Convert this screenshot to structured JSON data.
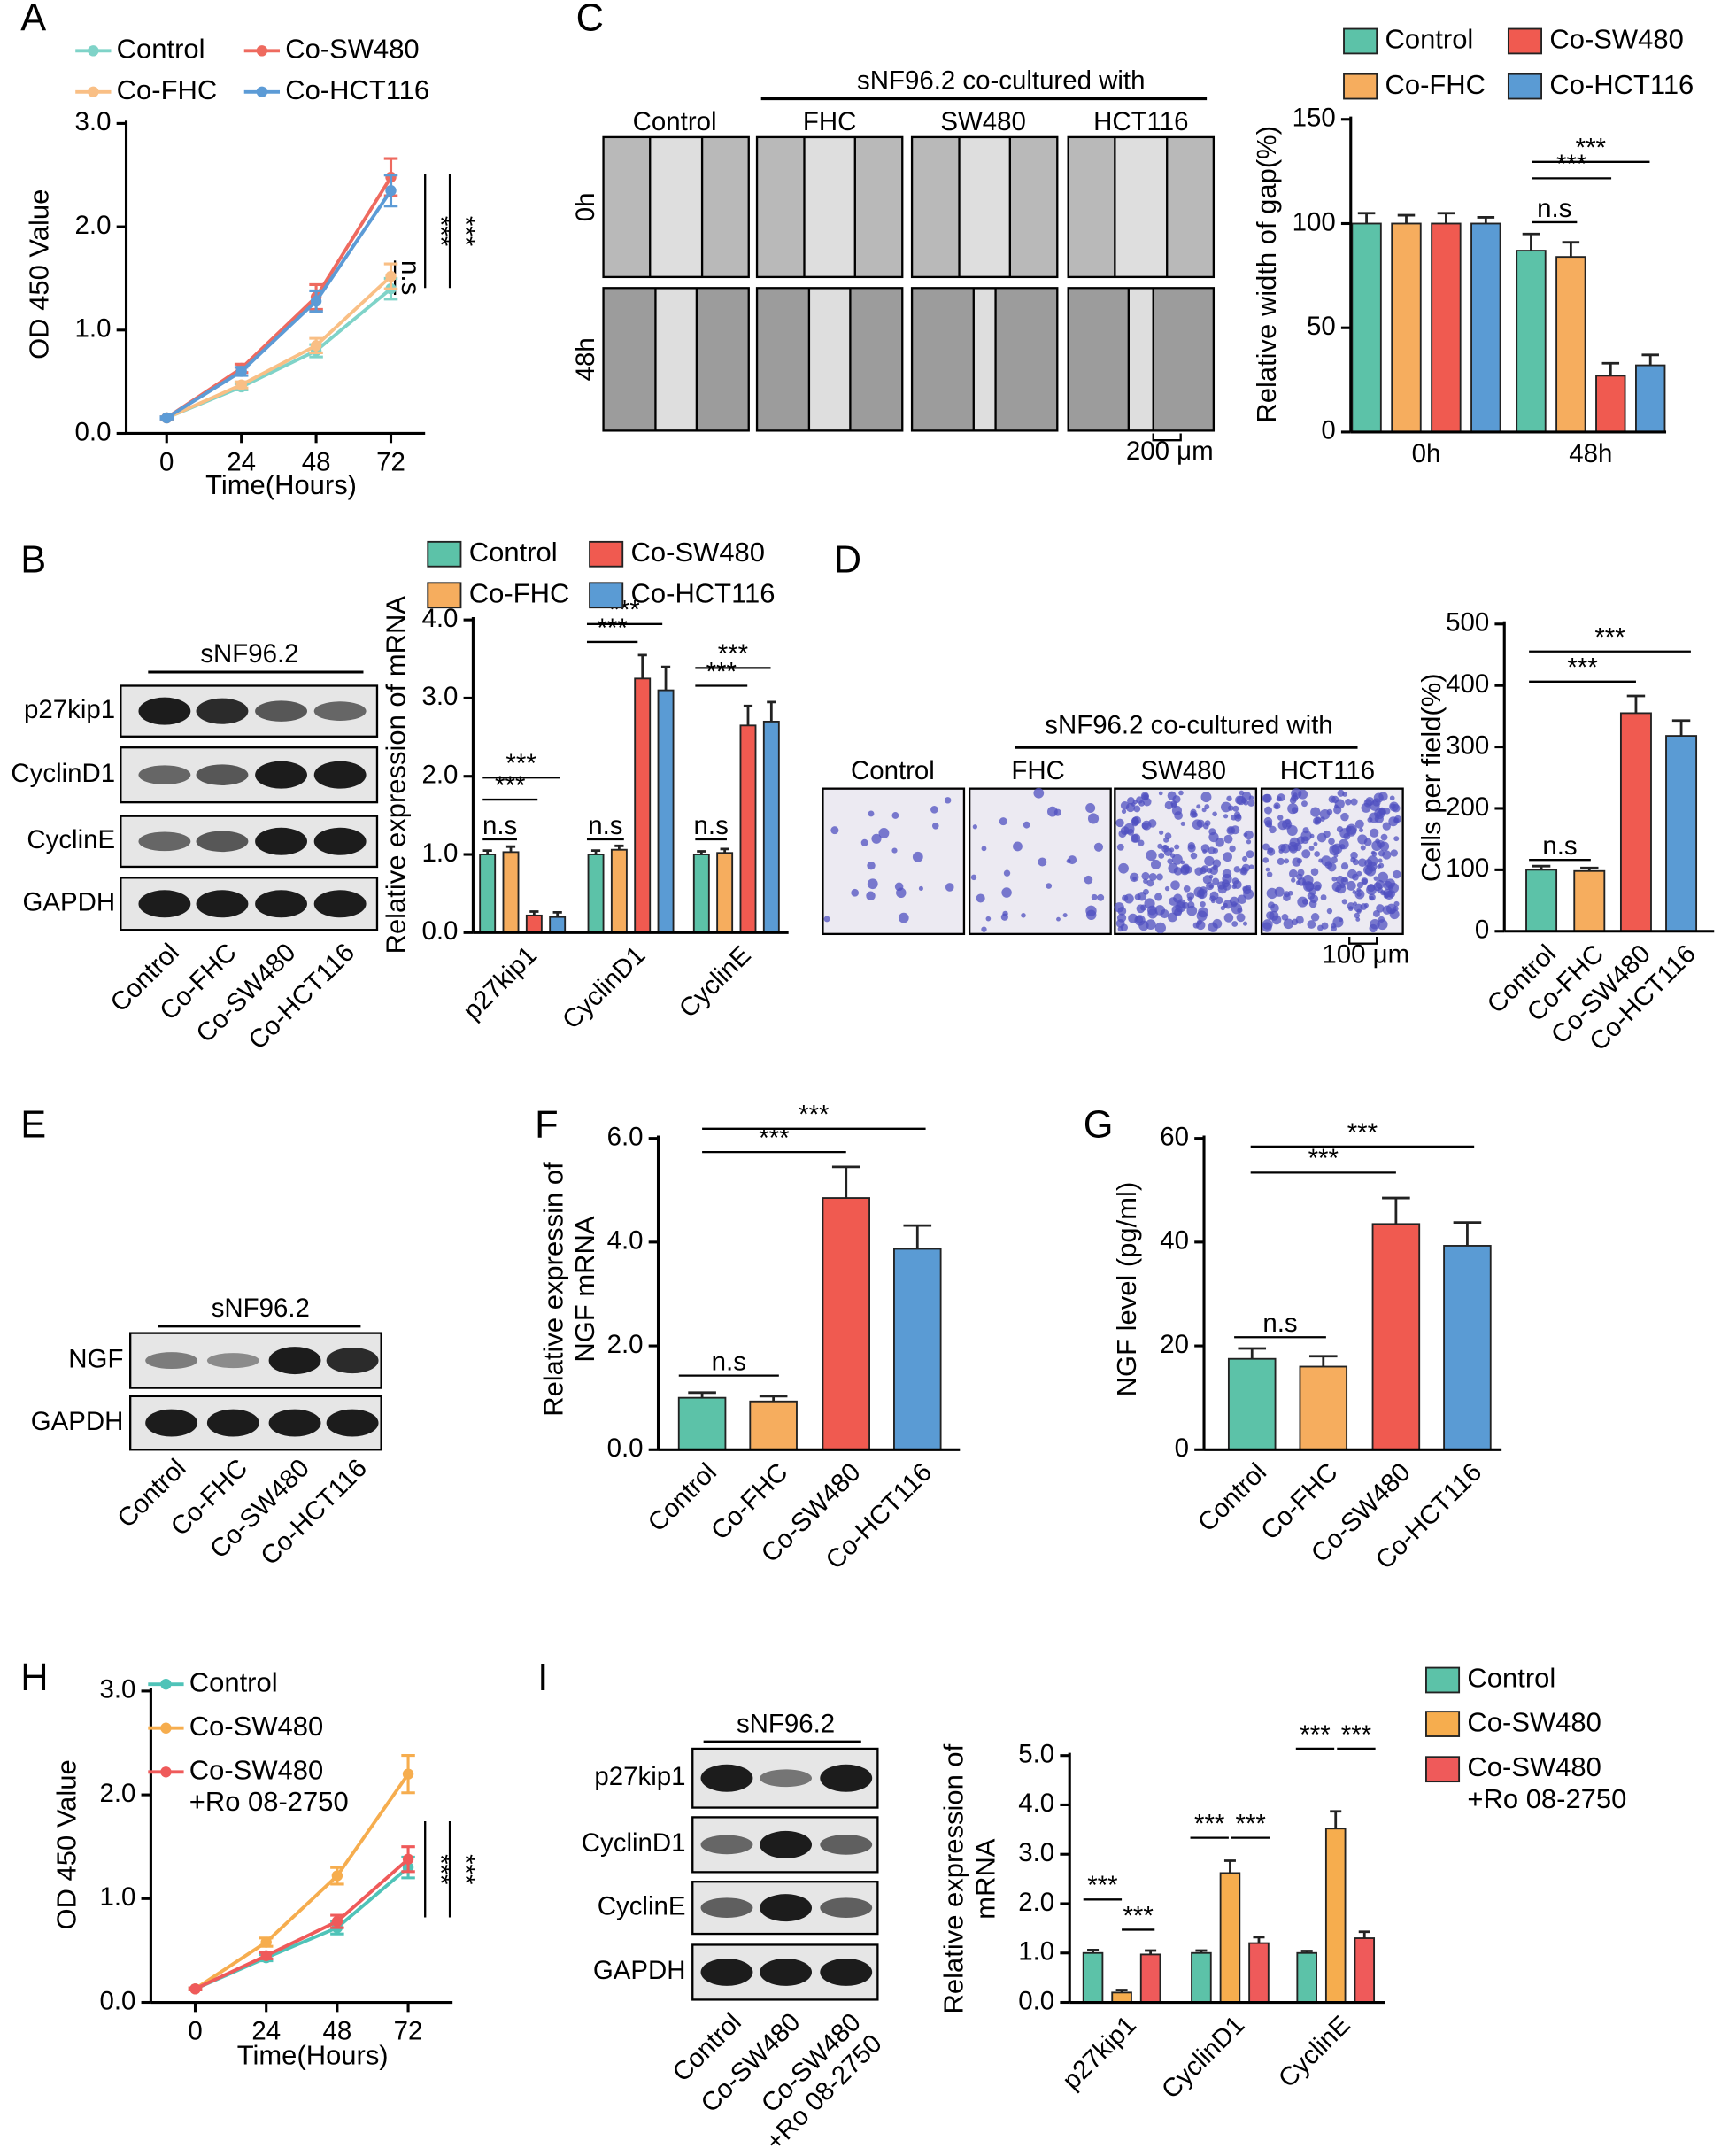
{
  "panels": [
    "A",
    "B",
    "C",
    "D",
    "E",
    "F",
    "G",
    "H",
    "I"
  ],
  "blots": [
    {
      "title": "sNF96.2",
      "rows": [
        "p27kip1",
        "CyclinD1",
        "CyclinE",
        "GAPDH"
      ],
      "lanes": [
        "Control",
        "Co-FHC",
        "Co-SW480",
        "Co-HCT116"
      ]
    },
    {
      "title": "sNF96.2",
      "rows": [
        "NGF",
        "GAPDH"
      ],
      "lanes": [
        "Control",
        "Co-FHC",
        "Co-SW480",
        "Co-HCT116"
      ]
    },
    {
      "title": "sNF96.2",
      "rows": [
        "p27kip1",
        "CyclinD1",
        "CyclinE",
        "GAPDH"
      ],
      "lanes": [
        "Control",
        "Co-SW480",
        "Co-SW480\n+Ro 08-2750"
      ]
    }
  ],
  "micrographs": [
    {
      "header": "sNF96.2 co-cultured with",
      "columns": [
        "Control",
        "FHC",
        "SW480",
        "HCT116"
      ],
      "rows": [
        "0h",
        "48h"
      ],
      "scale": "200 μm"
    },
    {
      "header": "sNF96.2 co-cultured with",
      "columns": [
        "Control",
        "FHC",
        "SW480",
        "HCT116"
      ],
      "scale": "100 μm"
    }
  ],
  "chart_data": [
    {
      "type": "line",
      "x": [
        0,
        24,
        48,
        72
      ],
      "xlim": [
        -13,
        83
      ],
      "xticks": [
        0,
        24,
        48,
        72
      ],
      "ylim": [
        0,
        3
      ],
      "yticks": [
        {
          "value": 0,
          "label": "0.0"
        },
        {
          "value": 1,
          "label": "1.0"
        },
        {
          "value": 2,
          "label": "2.0"
        },
        {
          "value": 3,
          "label": "3.0"
        }
      ],
      "xlabel": "Time(Hours)",
      "ylabel": "OD 450 Value",
      "series": [
        {
          "name": "Control",
          "color": "#7fd3c8",
          "values": [
            0.15,
            0.45,
            0.8,
            1.4
          ],
          "errors": [
            0.01,
            0.03,
            0.06,
            0.1
          ]
        },
        {
          "name": "Co-FHC",
          "color": "#f9bf85",
          "values": [
            0.15,
            0.47,
            0.85,
            1.52
          ],
          "errors": [
            0.01,
            0.03,
            0.07,
            0.12
          ]
        },
        {
          "name": "Co-SW480",
          "color": "#ee6a5f",
          "values": [
            0.15,
            0.63,
            1.32,
            2.48
          ],
          "errors": [
            0.01,
            0.04,
            0.12,
            0.18
          ]
        },
        {
          "name": "Co-HCT116",
          "color": "#5c9bd6",
          "values": [
            0.15,
            0.6,
            1.28,
            2.35
          ],
          "errors": [
            0.01,
            0.04,
            0.1,
            0.15
          ]
        }
      ],
      "annotations": [
        "n.s",
        "***",
        "***"
      ]
    },
    {
      "type": "bar",
      "categories": [
        "0h",
        "48h"
      ],
      "ylim": [
        0,
        150
      ],
      "yticks": [
        0,
        50,
        100,
        150
      ],
      "ylabel": "Relative width of gap(%)",
      "series": [
        {
          "name": "Control",
          "color": "#5cc2a8",
          "values": [
            100,
            87
          ],
          "errors": [
            5,
            8
          ]
        },
        {
          "name": "Co-FHC",
          "color": "#f6ad5e",
          "values": [
            100,
            84
          ],
          "errors": [
            4,
            7
          ]
        },
        {
          "name": "Co-SW480",
          "color": "#f05a50",
          "values": [
            100,
            27
          ],
          "errors": [
            5,
            6
          ]
        },
        {
          "name": "Co-HCT116",
          "color": "#5a9bd4",
          "values": [
            100,
            32
          ],
          "errors": [
            3,
            5
          ]
        }
      ],
      "annotations": [
        "n.s",
        "***",
        "***"
      ]
    },
    {
      "type": "bar",
      "categories": [
        "p27kip1",
        "CyclinD1",
        "CyclinE"
      ],
      "ylim": [
        0,
        4
      ],
      "yticks": [
        {
          "value": 0,
          "label": "0.0"
        },
        {
          "value": 1,
          "label": "1.0"
        },
        {
          "value": 2,
          "label": "2.0"
        },
        {
          "value": 3,
          "label": "3.0"
        },
        {
          "value": 4,
          "label": "4.0"
        }
      ],
      "ylabel": "Relative expression of mRNA",
      "series": [
        {
          "name": "Control",
          "color": "#5cc2a8",
          "values": [
            1.0,
            1.0,
            1.0
          ],
          "errors": [
            0.05,
            0.05,
            0.04
          ]
        },
        {
          "name": "Co-FHC",
          "color": "#f6ad5e",
          "values": [
            1.03,
            1.06,
            1.02
          ],
          "errors": [
            0.07,
            0.05,
            0.05
          ]
        },
        {
          "name": "Co-SW480",
          "color": "#f05a50",
          "values": [
            0.22,
            3.25,
            2.65
          ],
          "errors": [
            0.05,
            0.3,
            0.25
          ]
        },
        {
          "name": "Co-HCT116",
          "color": "#5a9bd4",
          "values": [
            0.2,
            3.1,
            2.7
          ],
          "errors": [
            0.06,
            0.3,
            0.25
          ]
        }
      ],
      "annotations": [
        "n.s",
        "***",
        "***",
        "n.s",
        "***",
        "***",
        "n.s",
        "***",
        "***"
      ]
    },
    {
      "type": "bar",
      "categories": [
        "Control",
        "Co-FHC",
        "Co-SW480",
        "Co-HCT116"
      ],
      "values": [
        100,
        98,
        355,
        318
      ],
      "errors": [
        6,
        5,
        28,
        25
      ],
      "colors": [
        "#5cc2a8",
        "#f6ad5e",
        "#f05a50",
        "#5a9bd4"
      ],
      "ylim": [
        0,
        500
      ],
      "yticks": [
        0,
        100,
        200,
        300,
        400,
        500
      ],
      "ylabel": "Cells per field(%)",
      "annotations": [
        "n.s",
        "***",
        "***"
      ]
    },
    {
      "type": "bar",
      "categories": [
        "Control",
        "Co-FHC",
        "Co-SW480",
        "Co-HCT116"
      ],
      "values": [
        1.0,
        0.93,
        4.85,
        3.87
      ],
      "errors": [
        0.1,
        0.1,
        0.6,
        0.45
      ],
      "colors": [
        "#5cc2a8",
        "#f6ad5e",
        "#f05a50",
        "#5a9bd4"
      ],
      "ylim": [
        0,
        6
      ],
      "yticks": [
        {
          "value": 0,
          "label": "0.0"
        },
        {
          "value": 2,
          "label": "2.0"
        },
        {
          "value": 4,
          "label": "4.0"
        },
        {
          "value": 6,
          "label": "6.0"
        }
      ],
      "ylabel": "Relative expressin of\nNGF mRNA",
      "annotations": [
        "n.s",
        "***",
        "***"
      ]
    },
    {
      "type": "bar",
      "categories": [
        "Control",
        "Co-FHC",
        "Co-SW480",
        "Co-HCT116"
      ],
      "values": [
        17.5,
        16,
        43.5,
        39.3
      ],
      "errors": [
        2,
        2,
        5,
        4.5
      ],
      "colors": [
        "#5cc2a8",
        "#f6ad5e",
        "#f05a50",
        "#5a9bd4"
      ],
      "ylim": [
        0,
        60
      ],
      "yticks": [
        0,
        20,
        40,
        60
      ],
      "ylabel": "NGF level (pg/ml)",
      "annotations": [
        "n.s",
        "***",
        "***"
      ]
    },
    {
      "type": "line",
      "x": [
        0,
        24,
        48,
        72
      ],
      "xlim": [
        -15,
        87
      ],
      "xticks": [
        0,
        24,
        48,
        72
      ],
      "ylim": [
        0,
        3
      ],
      "yticks": [
        {
          "value": 0,
          "label": "0.0"
        },
        {
          "value": 1,
          "label": "1.0"
        },
        {
          "value": 2,
          "label": "2.0"
        },
        {
          "value": 3,
          "label": "3.0"
        }
      ],
      "xlabel": "Time(Hours)",
      "ylabel": "OD 450 Value",
      "series": [
        {
          "name": "Control",
          "color": "#4fc3b8",
          "values": [
            0.13,
            0.43,
            0.72,
            1.3
          ],
          "errors": [
            0.01,
            0.03,
            0.06,
            0.1
          ]
        },
        {
          "name": "Co-SW480",
          "color": "#f6ad4e",
          "values": [
            0.13,
            0.58,
            1.22,
            2.2
          ],
          "errors": [
            0.01,
            0.04,
            0.08,
            0.18
          ]
        },
        {
          "name": "Co-SW480\n+Ro 08-2750",
          "color": "#ef5a5a",
          "values": [
            0.13,
            0.45,
            0.78,
            1.38
          ],
          "errors": [
            0.01,
            0.03,
            0.06,
            0.12
          ]
        }
      ],
      "annotations": [
        "***",
        "***"
      ]
    },
    {
      "type": "bar",
      "categories": [
        "p27kip1",
        "CyclinD1",
        "CyclinE"
      ],
      "ylim": [
        0,
        5
      ],
      "yticks": [
        {
          "value": 0,
          "label": "0.0"
        },
        {
          "value": 1,
          "label": "1.0"
        },
        {
          "value": 2,
          "label": "2.0"
        },
        {
          "value": 3,
          "label": "3.0"
        },
        {
          "value": 4,
          "label": "4.0"
        },
        {
          "value": 5,
          "label": "5.0"
        }
      ],
      "ylabel": "Relative expression of\nmRNA",
      "series": [
        {
          "name": "Control",
          "color": "#5cc2a8",
          "values": [
            1.0,
            1.0,
            1.0
          ],
          "errors": [
            0.06,
            0.05,
            0.04
          ]
        },
        {
          "name": "Co-SW480",
          "color": "#f6ad4e",
          "values": [
            0.2,
            2.62,
            3.52
          ],
          "errors": [
            0.05,
            0.25,
            0.35
          ]
        },
        {
          "name": "Co-SW480\n+Ro 08-2750",
          "color": "#ef5a5a",
          "values": [
            0.97,
            1.2,
            1.3
          ],
          "errors": [
            0.08,
            0.12,
            0.13
          ]
        }
      ],
      "annotations": [
        "***",
        "***",
        "***",
        "***",
        "***",
        "***"
      ]
    }
  ]
}
